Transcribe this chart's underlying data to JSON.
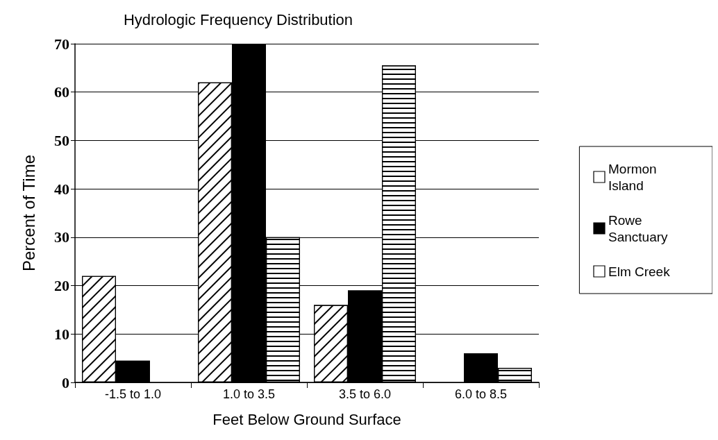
{
  "chart_data": {
    "type": "bar",
    "title": "Hydrologic Frequency Distribution",
    "xlabel": "Feet Below Ground Surface",
    "ylabel": "Percent of Time",
    "categories": [
      "-1.5 to 1.0",
      "1.0 to 3.5",
      "3.5 to 6.0",
      "6.0 to 8.5"
    ],
    "series": [
      {
        "name": "Mormon Island",
        "color": "#ffffff",
        "values": [
          22,
          62,
          16,
          0
        ]
      },
      {
        "name": "Rowe Sanctuary",
        "color": "#000000",
        "values": [
          4.5,
          70,
          19,
          6
        ]
      },
      {
        "name": "Elm Creek",
        "color": "#ffffff",
        "values": [
          0,
          30,
          65.5,
          3
        ]
      }
    ],
    "ylim": [
      0,
      70
    ],
    "yticks": [
      0,
      10,
      20,
      30,
      40,
      50,
      60,
      70
    ],
    "grid": "y",
    "legend": "right"
  }
}
